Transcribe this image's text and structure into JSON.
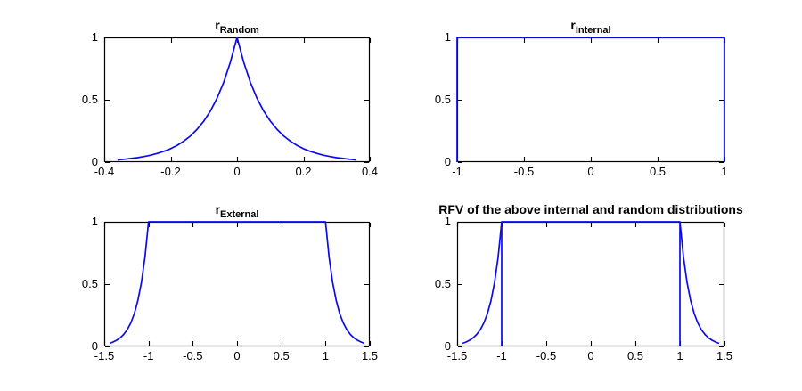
{
  "colors": {
    "line": "#0b0bee",
    "axis": "#000000",
    "background": "#ffffff",
    "text": "#000000"
  },
  "chart_data": [
    {
      "type": "line",
      "id": "random",
      "title_main": "r",
      "title_sub": "Random",
      "xlabel": "",
      "ylabel": "",
      "xlim": [
        -0.4,
        0.4
      ],
      "ylim": [
        0,
        1
      ],
      "grid": false,
      "box": true,
      "legend": "none",
      "xticks": [
        -0.4,
        -0.2,
        0,
        0.2,
        0.4
      ],
      "xtick_labels": [
        "-0.4",
        "-0.2",
        "0",
        "0.2",
        "0.4"
      ],
      "yticks": [
        0,
        0.5,
        1
      ],
      "ytick_labels": [
        "0",
        "0.5",
        "1"
      ],
      "series": [
        {
          "name": "random-laplace-curve",
          "x": [
            -0.36,
            -0.34,
            -0.32,
            -0.3,
            -0.28,
            -0.26,
            -0.24,
            -0.22,
            -0.2,
            -0.18,
            -0.16,
            -0.14,
            -0.12,
            -0.1,
            -0.08,
            -0.06,
            -0.04,
            -0.02,
            0,
            0.02,
            0.04,
            0.06,
            0.08,
            0.1,
            0.12,
            0.14,
            0.16,
            0.18,
            0.2,
            0.22,
            0.24,
            0.26,
            0.28,
            0.3,
            0.32,
            0.34,
            0.36
          ],
          "y": [
            0.018,
            0.023,
            0.029,
            0.036,
            0.045,
            0.056,
            0.07,
            0.087,
            0.108,
            0.135,
            0.169,
            0.211,
            0.264,
            0.329,
            0.411,
            0.513,
            0.641,
            0.801,
            1,
            0.801,
            0.641,
            0.513,
            0.411,
            0.329,
            0.264,
            0.211,
            0.169,
            0.135,
            0.108,
            0.087,
            0.07,
            0.056,
            0.045,
            0.036,
            0.029,
            0.023,
            0.018
          ]
        }
      ]
    },
    {
      "type": "line",
      "id": "internal",
      "title_main": "r",
      "title_sub": "Internal",
      "xlabel": "",
      "ylabel": "",
      "xlim": [
        -1,
        1
      ],
      "ylim": [
        0,
        1
      ],
      "grid": false,
      "box": true,
      "legend": "none",
      "xticks": [
        -1,
        -0.5,
        0,
        0.5,
        1
      ],
      "xtick_labels": [
        "-1",
        "-0.5",
        "0",
        "0.5",
        "1"
      ],
      "yticks": [
        0,
        0.5,
        1
      ],
      "ytick_labels": [
        "0",
        "0.5",
        "1"
      ],
      "series": [
        {
          "name": "internal-uniform-rect",
          "x": [
            -1,
            -1,
            1,
            1
          ],
          "y": [
            0,
            1,
            1,
            0
          ]
        }
      ]
    },
    {
      "type": "line",
      "id": "external",
      "title_main": "r",
      "title_sub": "External",
      "xlabel": "",
      "ylabel": "",
      "xlim": [
        -1.5,
        1.5
      ],
      "ylim": [
        0,
        1
      ],
      "grid": false,
      "box": true,
      "legend": "none",
      "xticks": [
        -1.5,
        -1,
        -0.5,
        0,
        0.5,
        1,
        1.5
      ],
      "xtick_labels": [
        "-1.5",
        "-1",
        "-0.5",
        "0",
        "0.5",
        "1",
        "1.5"
      ],
      "yticks": [
        0,
        0.5,
        1
      ],
      "ytick_labels": [
        "0",
        "0.5",
        "1"
      ],
      "series": [
        {
          "name": "external-flat-top-curve",
          "x": [
            -1.44,
            -1.4,
            -1.36,
            -1.32,
            -1.28,
            -1.24,
            -1.2,
            -1.16,
            -1.12,
            -1.08,
            -1.04,
            -1,
            1,
            1.04,
            1.08,
            1.12,
            1.16,
            1.2,
            1.24,
            1.28,
            1.32,
            1.36,
            1.4,
            1.44
          ],
          "y": [
            0.025,
            0.036,
            0.05,
            0.069,
            0.097,
            0.135,
            0.189,
            0.264,
            0.368,
            0.513,
            0.717,
            1,
            1,
            0.717,
            0.513,
            0.368,
            0.264,
            0.189,
            0.135,
            0.097,
            0.069,
            0.05,
            0.036,
            0.025
          ]
        }
      ]
    },
    {
      "type": "line",
      "id": "rfv",
      "title_main": "RFV of the above internal and random distributions",
      "title_sub": "",
      "xlabel": "",
      "ylabel": "",
      "xlim": [
        -1.5,
        1.5
      ],
      "ylim": [
        0,
        1
      ],
      "grid": false,
      "box": true,
      "legend": "none",
      "xticks": [
        -1.5,
        -1,
        -0.5,
        0,
        0.5,
        1,
        1.5
      ],
      "xtick_labels": [
        "-1.5",
        "-1",
        "-0.5",
        "0",
        "0.5",
        "1",
        "1.5"
      ],
      "yticks": [
        0,
        0.5,
        1
      ],
      "ytick_labels": [
        "0",
        "0.5",
        "1"
      ],
      "series": [
        {
          "name": "rfv-flat-top-curve",
          "x": [
            -1.44,
            -1.4,
            -1.36,
            -1.32,
            -1.28,
            -1.24,
            -1.2,
            -1.16,
            -1.12,
            -1.08,
            -1.04,
            -1,
            1,
            1.04,
            1.08,
            1.12,
            1.16,
            1.2,
            1.24,
            1.28,
            1.32,
            1.36,
            1.4,
            1.44
          ],
          "y": [
            0.025,
            0.036,
            0.05,
            0.069,
            0.097,
            0.135,
            0.189,
            0.264,
            0.368,
            0.513,
            0.717,
            1,
            1,
            0.717,
            0.513,
            0.368,
            0.264,
            0.189,
            0.135,
            0.097,
            0.069,
            0.05,
            0.036,
            0.025
          ]
        },
        {
          "name": "left-boundary-stem",
          "x": [
            -1,
            -1
          ],
          "y": [
            0,
            1
          ]
        },
        {
          "name": "right-boundary-stem",
          "x": [
            1,
            1
          ],
          "y": [
            0,
            1
          ]
        }
      ]
    }
  ]
}
